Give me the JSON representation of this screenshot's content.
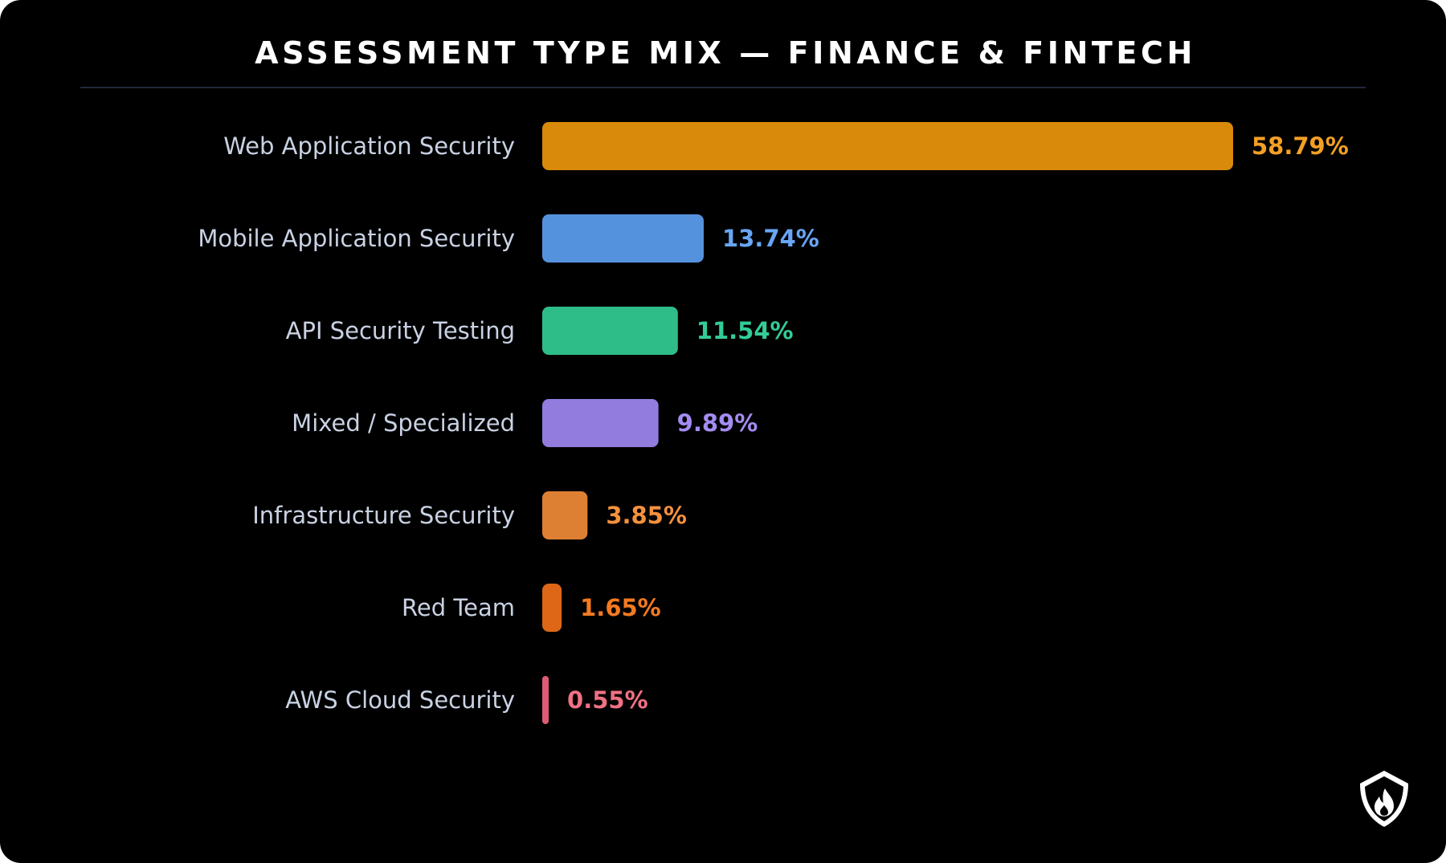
{
  "chart_data": {
    "type": "bar",
    "orientation": "horizontal",
    "title": "ASSESSMENT TYPE MIX — FINANCE & FINTECH",
    "categories": [
      "Web Application Security",
      "Mobile Application Security",
      "API Security Testing",
      "Mixed / Specialized",
      "Infrastructure Security",
      "Red Team",
      "AWS Cloud Security"
    ],
    "values": [
      58.79,
      13.74,
      11.54,
      9.89,
      3.85,
      1.65,
      0.55
    ],
    "value_labels": [
      "58.79%",
      "13.74%",
      "11.54%",
      "9.89%",
      "3.85%",
      "1.65%",
      "0.55%"
    ],
    "bar_colors": [
      "#d98a0a",
      "#5592dd",
      "#2ebd89",
      "#927cdd",
      "#de8034",
      "#dd6717",
      "#dc5d73"
    ],
    "label_colors": [
      "#f3a025",
      "#68a6f5",
      "#33cc96",
      "#a48cf2",
      "#f4913d",
      "#f47a20",
      "#f07183"
    ],
    "xlim": [
      0,
      58.79
    ],
    "grid": false,
    "legend": "none"
  },
  "logo": {
    "icon": "shield-flame-icon"
  }
}
